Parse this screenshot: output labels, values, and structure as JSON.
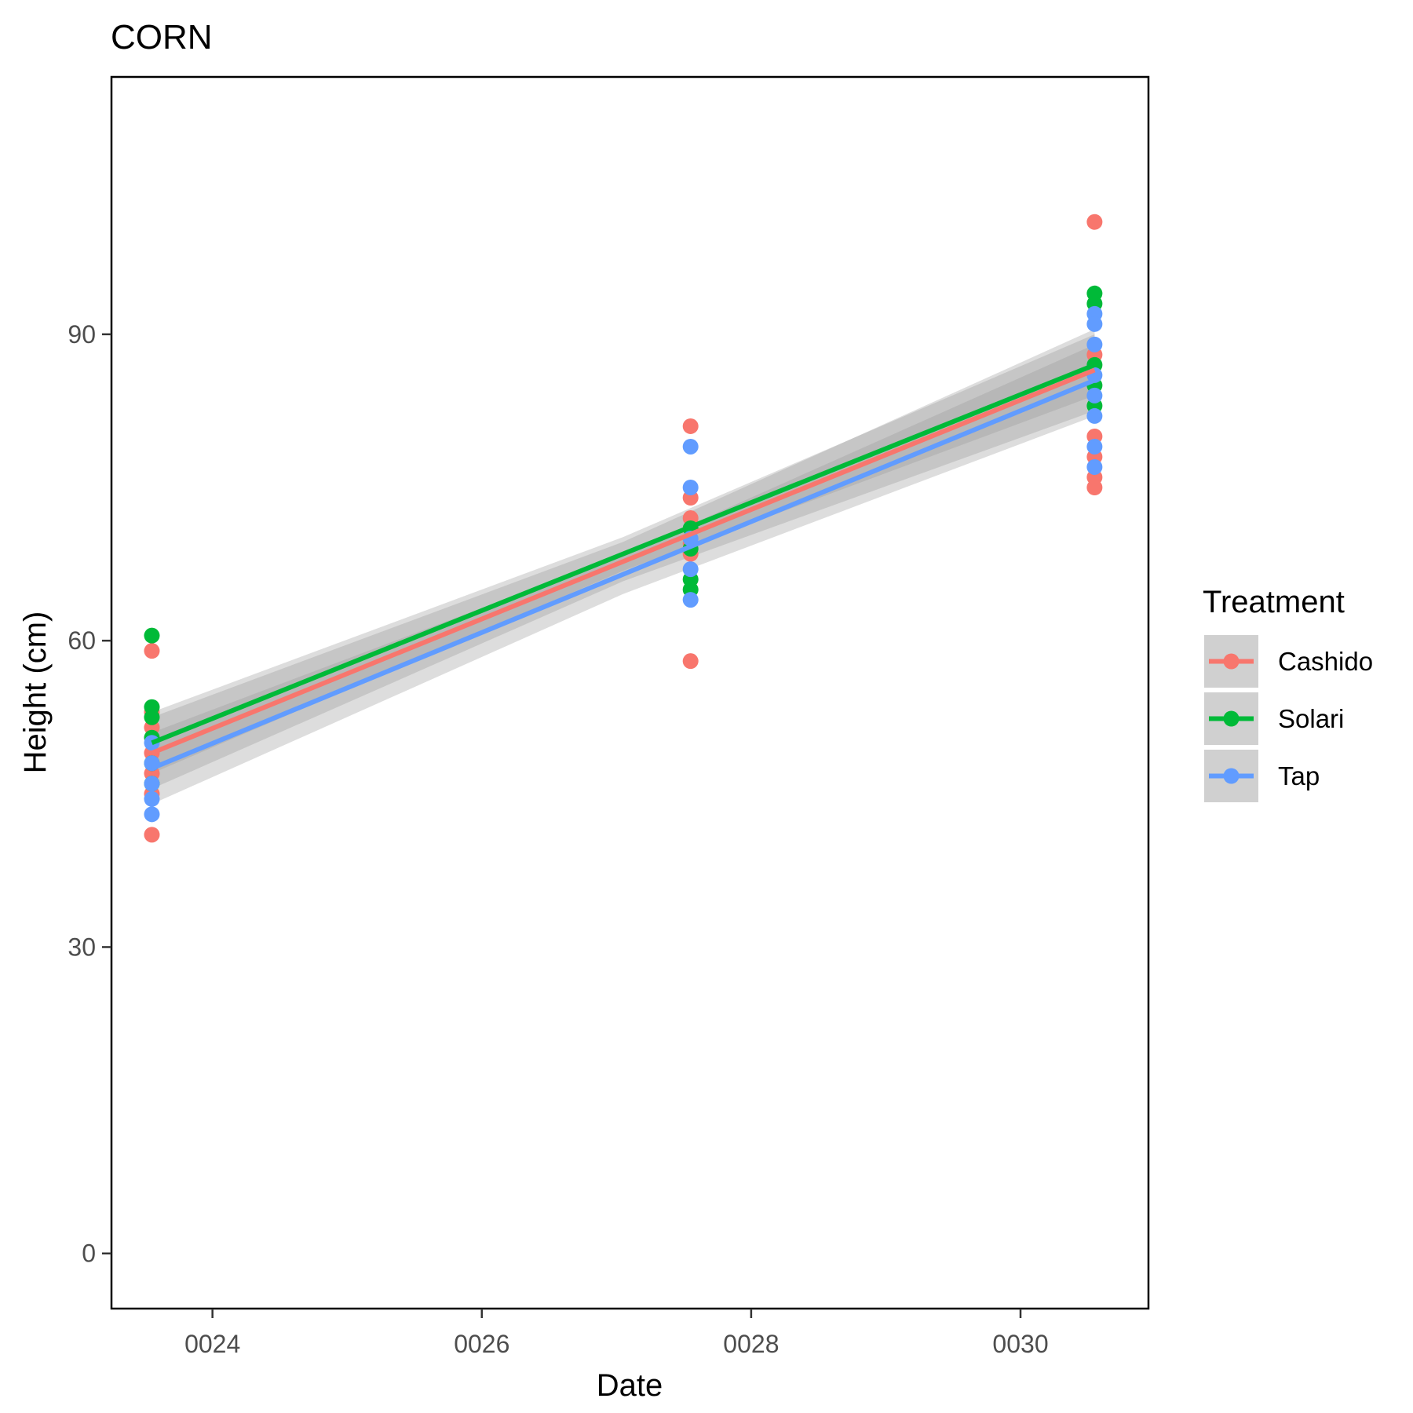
{
  "chart_data": {
    "type": "scatter",
    "title": "CORN",
    "xlabel": "Date",
    "ylabel": "Height (cm)",
    "xlim": [
      23.25,
      30.95
    ],
    "ylim": [
      -5.4,
      115.2
    ],
    "x_ticks": [
      {
        "value": 24,
        "label": "0024"
      },
      {
        "value": 26,
        "label": "0026"
      },
      {
        "value": 28,
        "label": "0028"
      },
      {
        "value": 30,
        "label": "0030"
      }
    ],
    "y_ticks": [
      {
        "value": 0,
        "label": "0"
      },
      {
        "value": 30,
        "label": "30"
      },
      {
        "value": 60,
        "label": "60"
      },
      {
        "value": 90,
        "label": "90"
      }
    ],
    "grid": false,
    "legend": {
      "title": "Treatment",
      "position": "right"
    },
    "series": [
      {
        "name": "Cashido",
        "color": "#F8766D",
        "points": [
          {
            "x": 23.55,
            "y": 59.0
          },
          {
            "x": 23.55,
            "y": 53.0
          },
          {
            "x": 23.55,
            "y": 51.5
          },
          {
            "x": 23.55,
            "y": 49.0
          },
          {
            "x": 23.55,
            "y": 47.0
          },
          {
            "x": 23.55,
            "y": 45.0
          },
          {
            "x": 23.55,
            "y": 41.0
          },
          {
            "x": 27.55,
            "y": 81.0
          },
          {
            "x": 27.55,
            "y": 74.0
          },
          {
            "x": 27.55,
            "y": 72.0
          },
          {
            "x": 27.55,
            "y": 69.5
          },
          {
            "x": 27.55,
            "y": 68.5
          },
          {
            "x": 27.55,
            "y": 58.0
          },
          {
            "x": 30.55,
            "y": 101.0
          },
          {
            "x": 30.55,
            "y": 88.0
          },
          {
            "x": 30.55,
            "y": 80.0
          },
          {
            "x": 30.55,
            "y": 78.0
          },
          {
            "x": 30.55,
            "y": 76.0
          },
          {
            "x": 30.55,
            "y": 75.0
          }
        ],
        "fit": {
          "x": [
            23.55,
            30.55
          ],
          "y": [
            49.0,
            86.5
          ]
        },
        "ci_halfwidth": [
          3.5,
          4.0
        ]
      },
      {
        "name": "Solari",
        "color": "#00BA38",
        "points": [
          {
            "x": 23.55,
            "y": 60.5
          },
          {
            "x": 23.55,
            "y": 53.5
          },
          {
            "x": 23.55,
            "y": 52.5
          },
          {
            "x": 23.55,
            "y": 50.5
          },
          {
            "x": 23.55,
            "y": 48.0
          },
          {
            "x": 23.55,
            "y": 46.0
          },
          {
            "x": 27.55,
            "y": 71.0
          },
          {
            "x": 27.55,
            "y": 69.0
          },
          {
            "x": 27.55,
            "y": 66.0
          },
          {
            "x": 27.55,
            "y": 65.0
          },
          {
            "x": 30.55,
            "y": 94.0
          },
          {
            "x": 30.55,
            "y": 93.0
          },
          {
            "x": 30.55,
            "y": 87.0
          },
          {
            "x": 30.55,
            "y": 85.0
          },
          {
            "x": 30.55,
            "y": 83.0
          }
        ],
        "fit": {
          "x": [
            23.55,
            30.55
          ],
          "y": [
            50.0,
            87.0
          ]
        },
        "ci_halfwidth": [
          3.0,
          3.0
        ]
      },
      {
        "name": "Tap",
        "color": "#619CFF",
        "points": [
          {
            "x": 23.55,
            "y": 50.0
          },
          {
            "x": 23.55,
            "y": 48.0
          },
          {
            "x": 23.55,
            "y": 46.0
          },
          {
            "x": 23.55,
            "y": 44.5
          },
          {
            "x": 23.55,
            "y": 43.0
          },
          {
            "x": 27.55,
            "y": 79.0
          },
          {
            "x": 27.55,
            "y": 75.0
          },
          {
            "x": 27.55,
            "y": 70.0
          },
          {
            "x": 27.55,
            "y": 67.0
          },
          {
            "x": 27.55,
            "y": 64.0
          },
          {
            "x": 30.55,
            "y": 92.0
          },
          {
            "x": 30.55,
            "y": 91.0
          },
          {
            "x": 30.55,
            "y": 89.0
          },
          {
            "x": 30.55,
            "y": 86.0
          },
          {
            "x": 30.55,
            "y": 84.0
          },
          {
            "x": 30.55,
            "y": 82.0
          },
          {
            "x": 30.55,
            "y": 79.0
          },
          {
            "x": 30.55,
            "y": 77.0
          }
        ],
        "fit": {
          "x": [
            23.55,
            30.55
          ],
          "y": [
            47.5,
            85.5
          ]
        },
        "ci_halfwidth": [
          3.5,
          3.5
        ]
      }
    ]
  }
}
